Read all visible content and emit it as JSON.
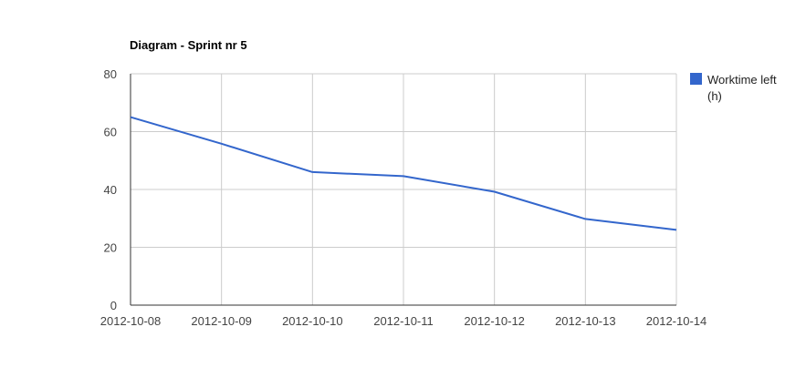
{
  "chart_data": {
    "type": "line",
    "title": "Diagram - Sprint nr 5",
    "xlabel": "",
    "ylabel": "",
    "categories": [
      "2012-10-08",
      "2012-10-09",
      "2012-10-10",
      "2012-10-11",
      "2012-10-12",
      "2012-10-13",
      "2012-10-14"
    ],
    "series": [
      {
        "name": "Worktime left (h)",
        "name_lines": [
          "Worktime left",
          "(h)"
        ],
        "color": "#3366cc",
        "values": [
          65,
          55.8,
          46,
          44.6,
          39.2,
          29.8,
          26
        ]
      }
    ],
    "ylim": [
      0,
      80
    ],
    "yticks": [
      0,
      20,
      40,
      60,
      80
    ],
    "grid": true,
    "legend_position": "right",
    "colors": {
      "gridline": "#cccccc",
      "axis": "#333333"
    }
  }
}
